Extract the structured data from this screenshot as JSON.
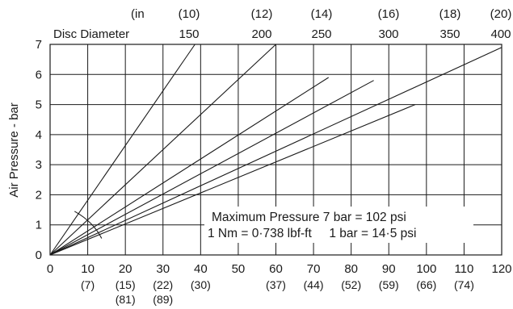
{
  "chart_data": {
    "type": "line",
    "ylabel": "Air Pressure - bar",
    "xlim": [
      0,
      120
    ],
    "ylim": [
      0,
      7
    ],
    "x_ticks": [
      0,
      10,
      20,
      30,
      40,
      50,
      60,
      70,
      80,
      90,
      100,
      110,
      120
    ],
    "y_ticks": [
      0,
      1,
      2,
      3,
      4,
      5,
      6,
      7
    ],
    "x_secondary_labels": [
      {
        "x": 10,
        "label": "(7)"
      },
      {
        "x": 20,
        "label": "(15)",
        "label2": "(81)"
      },
      {
        "x": 30,
        "label": "(22)",
        "label2": "(89)"
      },
      {
        "x": 40,
        "label": "(30)"
      },
      {
        "x": 60,
        "label": "(37)"
      },
      {
        "x": 70,
        "label": "(44)"
      },
      {
        "x": 80,
        "label": "(52)"
      },
      {
        "x": 90,
        "label": "(59)"
      },
      {
        "x": 100,
        "label": "(66)"
      },
      {
        "x": 110,
        "label": "(74)"
      }
    ],
    "disc_diameter_header": {
      "unit_label": "(in",
      "row_label": "Disc Diameter",
      "inches": [
        "(10)",
        "(12)",
        "(14)",
        "(16)",
        "(18)",
        "(20)"
      ],
      "mm": [
        "150",
        "200",
        "250",
        "300",
        "350",
        "400"
      ]
    },
    "series": [
      {
        "points": [
          [
            0,
            0
          ],
          [
            38.5,
            7
          ]
        ]
      },
      {
        "points": [
          [
            0,
            0
          ],
          [
            60,
            7
          ]
        ]
      },
      {
        "points": [
          [
            0,
            0
          ],
          [
            74,
            5.9
          ]
        ]
      },
      {
        "points": [
          [
            0,
            0
          ],
          [
            86,
            5.8
          ]
        ]
      },
      {
        "points": [
          [
            0,
            0
          ],
          [
            97,
            5.0
          ]
        ]
      },
      {
        "points": [
          [
            0,
            0
          ],
          [
            120,
            6.9
          ]
        ]
      }
    ],
    "annotations": {
      "line1": "Maximum Pressure 7 bar = 102 psi",
      "line2": "1 Nm = 0·738 lbf-ft     1 bar = 14·5 psi"
    },
    "grid": true
  }
}
